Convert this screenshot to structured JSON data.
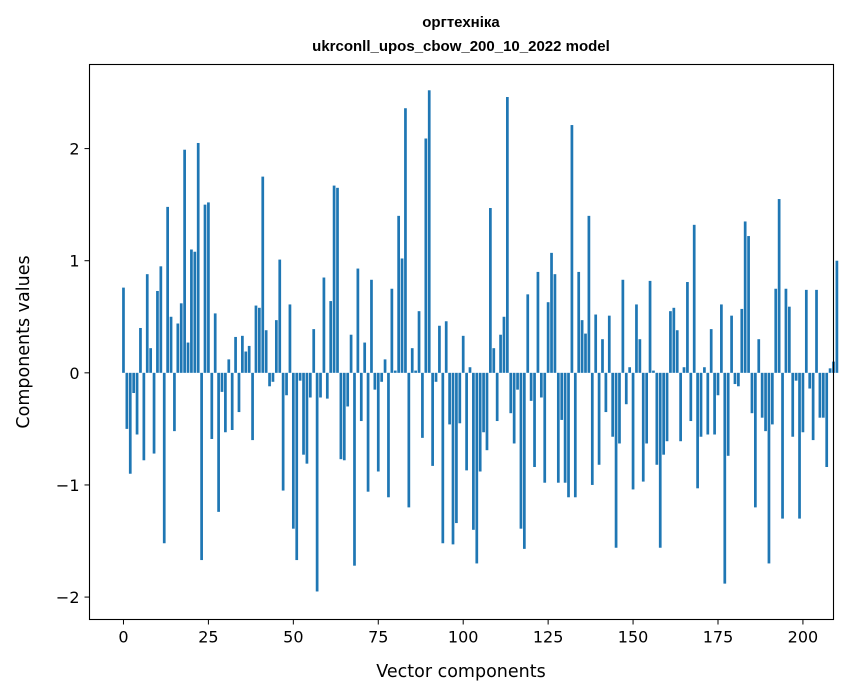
{
  "chart_data": {
    "type": "bar",
    "title_line1": "оргтехніка",
    "title_line2": "ukrconll_upos_cbow_200_10_2022 model",
    "xlabel": "Vector components",
    "ylabel": "Components values",
    "xlim": [
      -10,
      209
    ],
    "ylim": [
      -2.2,
      2.75
    ],
    "xticks": [
      0,
      25,
      50,
      75,
      100,
      125,
      150,
      175,
      200
    ],
    "yticks": [
      -2,
      -1,
      0,
      1,
      2
    ],
    "ytick_labels": [
      "−2",
      "−1",
      "0",
      "1",
      "2"
    ],
    "bar_color": "#1f77b4",
    "values": [
      0.76,
      -0.5,
      -0.9,
      -0.18,
      -0.55,
      0.4,
      -0.78,
      0.88,
      0.22,
      -0.72,
      0.73,
      0.95,
      -1.52,
      1.48,
      0.5,
      -0.52,
      0.44,
      0.62,
      1.99,
      0.27,
      1.1,
      1.08,
      2.05,
      -1.67,
      1.5,
      1.52,
      -0.59,
      0.53,
      -1.24,
      -0.17,
      -0.53,
      0.12,
      -0.51,
      0.32,
      -0.35,
      0.33,
      0.19,
      0.24,
      -0.6,
      0.6,
      0.58,
      1.75,
      0.38,
      -0.12,
      -0.08,
      0.47,
      1.01,
      -1.05,
      -0.2,
      0.61,
      -1.39,
      -1.67,
      -0.07,
      -0.73,
      -0.81,
      -0.22,
      0.39,
      -1.95,
      -0.22,
      0.85,
      -0.23,
      0.64,
      1.67,
      1.65,
      -0.77,
      -0.78,
      -0.3,
      0.34,
      -1.72,
      0.93,
      -0.43,
      0.27,
      -1.06,
      0.83,
      -0.15,
      -0.88,
      -0.08,
      0.12,
      -1.11,
      0.75,
      0.02,
      1.4,
      1.02,
      2.36,
      -1.2,
      0.22,
      0.02,
      0.55,
      -0.58,
      2.09,
      2.52,
      -0.83,
      -0.08,
      0.42,
      -1.52,
      0.46,
      -0.46,
      -1.53,
      -1.34,
      -0.45,
      0.33,
      -0.87,
      0.05,
      -1.4,
      -1.7,
      -0.88,
      -0.53,
      -0.69,
      1.47,
      0.22,
      -0.43,
      0.34,
      0.5,
      2.46,
      -0.36,
      -0.63,
      -0.15,
      -1.39,
      -1.57,
      0.7,
      -0.25,
      -0.84,
      0.9,
      -0.22,
      -0.98,
      0.63,
      1.07,
      0.88,
      -0.98,
      -0.42,
      -0.98,
      -1.11,
      2.21,
      -1.11,
      0.9,
      0.47,
      0.35,
      1.4,
      -1.0,
      0.52,
      -0.82,
      0.3,
      -0.35,
      0.51,
      -0.57,
      -1.56,
      -0.63,
      0.83,
      -0.28,
      0.05,
      -1.04,
      0.61,
      0.3,
      -0.97,
      -0.63,
      0.82,
      0.02,
      -0.82,
      -1.56,
      -0.73,
      -0.61,
      0.55,
      0.58,
      0.38,
      -0.61,
      0.05,
      0.81,
      -0.43,
      1.32,
      -1.03,
      -0.57,
      0.05,
      -0.55,
      0.39,
      -0.55,
      -0.2,
      0.61,
      -1.88,
      -0.74,
      0.51,
      -0.1,
      -0.12,
      0.57,
      1.35,
      1.22,
      -0.36,
      -1.2,
      0.3,
      -0.4,
      -0.52,
      -1.7,
      -0.46,
      0.75,
      1.55,
      -1.3,
      0.75,
      0.59,
      -0.57,
      -0.07,
      -1.3,
      -0.53,
      0.74,
      -0.14,
      -0.6,
      0.74,
      -0.4,
      -0.4,
      -0.84,
      0.04,
      0.1,
      1.0
    ]
  }
}
